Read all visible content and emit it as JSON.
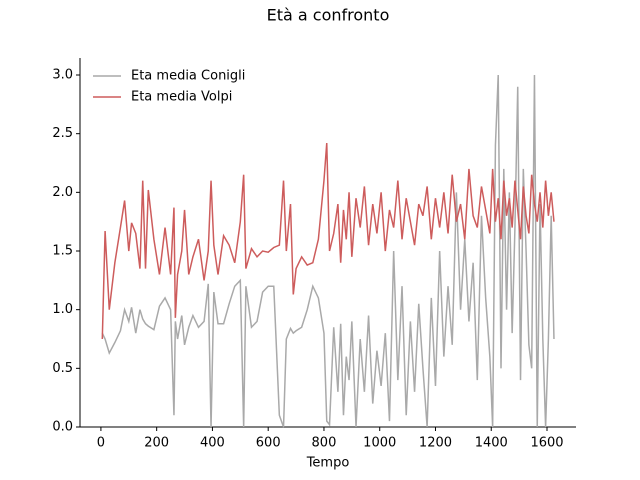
{
  "chart_data": {
    "type": "line",
    "title": "Età a confronto",
    "xlabel": "Tempo",
    "x": [
      5,
      15,
      30,
      50,
      70,
      85,
      100,
      110,
      125,
      140,
      150,
      160,
      170,
      190,
      210,
      230,
      250,
      262,
      267,
      275,
      290,
      300,
      315,
      330,
      350,
      370,
      385,
      395,
      405,
      420,
      440,
      460,
      480,
      500,
      512,
      520,
      540,
      560,
      580,
      600,
      620,
      640,
      655,
      665,
      680,
      690,
      700,
      720,
      740,
      760,
      780,
      800,
      810,
      820,
      835,
      850,
      860,
      870,
      880,
      890,
      900,
      915,
      930,
      945,
      960,
      975,
      990,
      1005,
      1020,
      1035,
      1050,
      1065,
      1080,
      1095,
      1110,
      1125,
      1140,
      1155,
      1170,
      1185,
      1200,
      1215,
      1230,
      1245,
      1260,
      1275,
      1290,
      1305,
      1320,
      1335,
      1350,
      1365,
      1380,
      1395,
      1405,
      1415,
      1425,
      1435,
      1445,
      1455,
      1465,
      1475,
      1485,
      1495,
      1505,
      1515,
      1525,
      1535,
      1545,
      1555,
      1565,
      1575,
      1585,
      1595,
      1605,
      1615,
      1625
    ],
    "series": [
      {
        "name": "Eta media Conigli",
        "color": "#a9a9a9",
        "values": [
          0.8,
          0.75,
          0.63,
          0.72,
          0.82,
          1.0,
          0.9,
          1.02,
          0.8,
          1.0,
          0.92,
          0.88,
          0.86,
          0.83,
          1.03,
          1.1,
          1.0,
          0.1,
          0.9,
          0.75,
          0.95,
          0.7,
          0.85,
          0.95,
          0.85,
          0.9,
          1.22,
          0.0,
          1.15,
          0.88,
          0.88,
          1.05,
          1.2,
          1.25,
          0.0,
          1.2,
          0.85,
          0.9,
          1.15,
          1.2,
          1.2,
          0.1,
          0.0,
          0.75,
          0.84,
          0.8,
          0.82,
          0.85,
          1.0,
          1.2,
          1.1,
          0.8,
          0.05,
          0.02,
          0.85,
          0.3,
          0.88,
          0.1,
          0.6,
          0.4,
          0.9,
          0.0,
          0.75,
          0.3,
          0.95,
          0.2,
          0.65,
          0.35,
          0.8,
          0.05,
          1.5,
          0.4,
          1.2,
          0.1,
          0.9,
          0.3,
          1.05,
          0.5,
          0.0,
          1.1,
          0.35,
          1.5,
          0.6,
          1.2,
          0.7,
          2.0,
          1.0,
          1.6,
          0.9,
          1.4,
          0.4,
          1.8,
          1.1,
          0.6,
          0.0,
          2.4,
          3.0,
          0.5,
          2.2,
          1.0,
          2.0,
          0.8,
          1.7,
          2.9,
          0.4,
          2.2,
          1.5,
          0.7,
          0.5,
          3.0,
          0.0,
          1.9,
          0.75,
          0.0,
          0.75,
          1.8,
          0.75
        ]
      },
      {
        "name": "Eta media Volpi",
        "color": "#cd5c5c",
        "values": [
          0.75,
          1.67,
          1.0,
          1.4,
          1.7,
          1.93,
          1.5,
          1.74,
          1.65,
          1.35,
          2.1,
          1.35,
          2.02,
          1.6,
          1.3,
          1.7,
          1.3,
          1.87,
          0.93,
          1.3,
          1.5,
          1.85,
          1.3,
          1.45,
          1.6,
          1.25,
          1.5,
          2.1,
          1.55,
          1.3,
          1.63,
          1.55,
          1.4,
          1.75,
          2.15,
          1.35,
          1.52,
          1.45,
          1.5,
          1.49,
          1.53,
          1.55,
          2.1,
          1.5,
          1.9,
          1.13,
          1.35,
          1.45,
          1.38,
          1.4,
          1.6,
          2.1,
          2.42,
          1.5,
          1.65,
          1.9,
          1.4,
          1.85,
          1.6,
          2.0,
          1.45,
          1.95,
          1.7,
          2.05,
          1.55,
          1.9,
          1.65,
          2.0,
          1.5,
          1.85,
          1.7,
          2.1,
          1.6,
          1.95,
          1.75,
          1.55,
          1.9,
          1.8,
          2.05,
          1.6,
          1.95,
          1.7,
          2.0,
          1.65,
          2.15,
          1.75,
          1.9,
          1.6,
          2.2,
          1.8,
          1.7,
          2.05,
          1.85,
          1.65,
          2.2,
          1.75,
          1.95,
          1.6,
          2.1,
          1.8,
          1.95,
          1.7,
          2.1,
          1.85,
          1.6,
          2.05,
          1.8,
          1.65,
          2.15,
          1.9,
          1.75,
          2.0,
          1.7,
          2.1,
          1.8,
          2.0,
          1.75
        ]
      }
    ],
    "xlim": [
      -75,
      1704
    ],
    "xticks": [
      0,
      200,
      400,
      600,
      800,
      1000,
      1200,
      1400,
      1600
    ],
    "ylim": [
      0,
      3.145
    ],
    "yticks": [
      {
        "value": 0,
        "label": "0.0"
      },
      {
        "value": 0.5,
        "label": "0.5"
      },
      {
        "value": 1,
        "label": "1.0"
      },
      {
        "value": 1.5,
        "label": "1.5"
      },
      {
        "value": 2,
        "label": "2.0"
      },
      {
        "value": 2.5,
        "label": "2.5"
      },
      {
        "value": 3,
        "label": "3.0"
      }
    ],
    "legend": "upper left",
    "grid": false
  }
}
